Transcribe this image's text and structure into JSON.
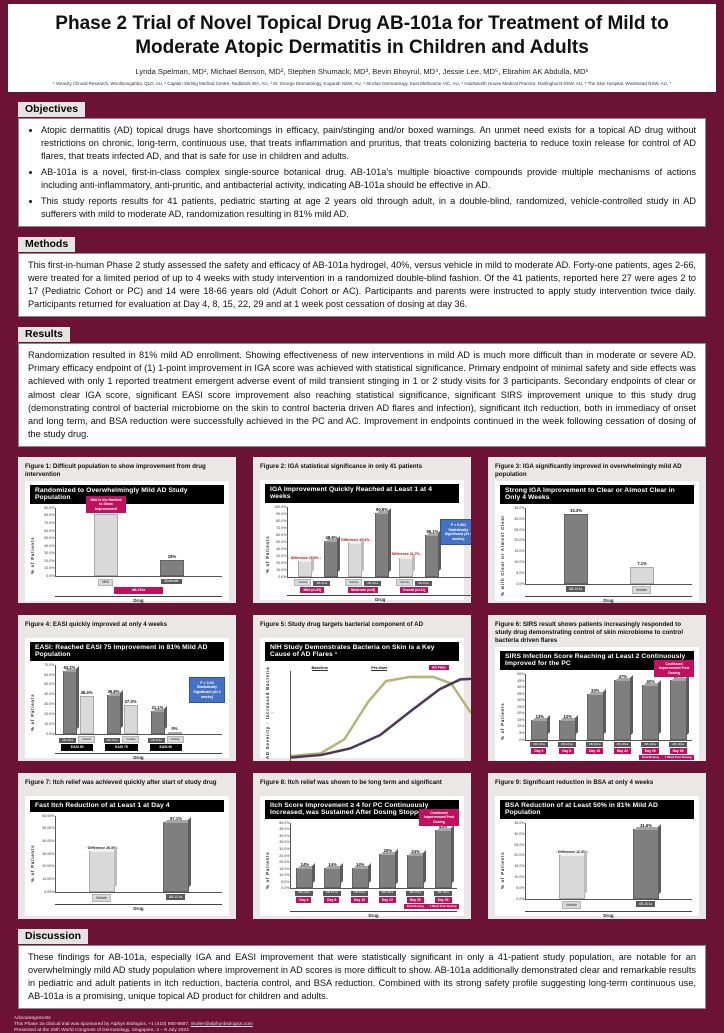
{
  "poster": {
    "title": "Phase 2 Trial of Novel Topical Drug AB-101a for Treatment of Mild to Moderate Atopic Dermatitis in Children and Adults",
    "authors": "Lynda Spelman, MD¹, Michael Benson, MD², Stephen Shumack, MD³, Bevin Bhoyrul, MD⁴, Jessie Lee, MD⁵, Ebrahim AK Abdulla, MD⁶",
    "affiliations": "¹ Veracity Clinical Research, Woolloongabba, QLD, AU, ² Captain Stirling Medical Centre, Nedlands WA, AU, ³ St. George Dermatology, Kogarah NSW, AU, ⁴ Sinclair Dermatology, East Melbourne VIC, AU, ⁵ Holdsworth House Medical Practice, Darlinghurst NSW, AU, ⁶ The Skin Hospital, Westmead NSW, AU, ⁷"
  },
  "sections": {
    "objectives": {
      "label": "Objectives",
      "bullets": [
        "Atopic dermatitis (AD) topical drugs have shortcomings in efficacy, pain/stinging and/or boxed warnings.  An unmet need exists for a topical AD drug without restrictions on chronic, long-term, continuous use, that treats inflammation and pruritus, that treats colonizing bacteria to reduce toxin release for control of AD flares, that treats infected AD, and that is safe for use in children and adults.",
        "AB-101a is a novel, first-in-class complex single-source botanical drug.  AB-101a's multiple bioactive compounds provide multiple mechanisms of actions including anti-inflammatory, anti-pruritic, and antibacterial activity, indicating AB-101a should be effective in AD.",
        "This study reports results for 41 patients, pediatric starting at age 2 years old through adult, in a double-blind, randomized, vehicle-controlled study in AD sufferers with mild to moderate AD, randomization resulting in 81% mild AD."
      ]
    },
    "methods": {
      "label": "Methods",
      "text": "This first-in-human Phase 2 study assessed the safety and efficacy of AB-101a hydrogel, 40%, versus vehicle in mild to moderate AD.  Forty-one patients, ages 2-66, were treated for a limited period of up to 4 weeks with study intervention in a randomized double-blind fashion.  Of the 41 patients, reported here 27 were ages 2 to 17 (Pediatric Cohort or PC) and 14 were 18-66 years old (Adult Cohort or AC).  Participants and parents were instructed to apply study intervention twice daily.  Participants returned for evaluation at Day 4, 8, 15, 22, 29 and at 1 week post cessation of dosing at day 36."
    },
    "results": {
      "label": "Results",
      "text": "Randomization resulted in 81% mild AD enrollment.  Showing effectiveness of new interventions in mild AD is much more difficult than in moderate or severe AD.  Primary efficacy endpoint of (1) 1-point improvement in IGA score was achieved with statistical significance.  Primary endpoint of minimal safety and side effects was achieved with only 1 reported treatment emergent adverse event of mild transient stinging in 1 or 2 study visits for 3 participants.  Secondary endpoints of clear or almost clear IGA score, significant EASI score improvement also reaching statistical significance, significant SIRS improvement unique to this study drug (demonstrating control of bacterial microbiome on the skin to control bacteria driven AD flares and infection), significant itch reduction, both in immediacy of onset and long term, and BSA reduction were successfully achieved in the PC and AC.  Improvement in endpoints continued in the week following cessation of dosing of the study drug."
    },
    "discussion": {
      "label": "Discussion",
      "text": "These findings for AB-101a, especially IGA and EASI improvement that were statistically significant in only a 41-patient study population, are notable for an overwhelmingly mild AD study population where improvement in AD scores is more difficult to show.  AB-101a additionally demonstrated clear and remarkable results in pediatric and adult patients in itch reduction, bacteria control, and BSA reduction.  Combined with its strong safety profile suggesting long-term continuous use, AB-101a is a promising, unique topical AD product for children and adults."
    }
  },
  "footer": {
    "ack_label": "Acknowledgements:",
    "sponsor_prefix": "This Phase 2a clinical trial was sponsored by Alphyn Biologics, +1 (410) 690-8687, ",
    "sponsor_link": "nkoller@alphynbiologics.com",
    "presented": "Presented at the 25th World Congress of Dermatology, Singapore, 3 – 8 July 2023"
  },
  "colors": {
    "background": "#6B1235",
    "accent_pink": "#C2105E",
    "bar_light": "#D9D9D9",
    "bar_dark": "#7F7F7F",
    "stat_blue": "#4472C4",
    "title_bar": "#000000",
    "diff_red": "#C00000",
    "staph_curve": "#B5B578",
    "severity_curve": "#4B3A55"
  },
  "chart_data": [
    {
      "type": "bar",
      "kind": "simple",
      "figure_label": "Figure 1:",
      "caption": "Difficult population to show improvement from drug intervention",
      "title": "Randomized to Overwhelmingly Mild AD Study Population",
      "ylabel": "% of Patients",
      "xlabel": "Drug",
      "ylim": [
        0,
        90
      ],
      "ystep": 10,
      "ydec": 1,
      "bars": [
        {
          "label": "Mild",
          "value": 81,
          "value_label": "81%",
          "color": "light"
        },
        {
          "label": "Moderate",
          "value": 19,
          "value_label": "19%",
          "color": "dark"
        }
      ],
      "callout": "Mild is the Hardest to Show Improvement",
      "legend_tag": "AB-101a"
    },
    {
      "type": "bar",
      "kind": "grouped3d",
      "figure_label": "Figure 2:",
      "caption": "IGA statistical significance in only 41 patients",
      "title": "IGA Improvement Quickly Reached at Least 1 at 4 weeks",
      "ylabel": "% of Patients",
      "xlabel": "Drug",
      "ylim": [
        0,
        100
      ],
      "ystep": 10,
      "ydec": 1,
      "series": [
        {
          "name": "Vehicle"
        },
        {
          "name": "AB-101a"
        }
      ],
      "groups": [
        {
          "label": "Mild (n=33)",
          "vehicle": 20.0,
          "drug": 48.6,
          "drug_label": "48.6%",
          "diff": "Difference 28.6%"
        },
        {
          "label": "Moderate (n=8)",
          "vehicle": 45.5,
          "drug": 90.9,
          "drug_label": "90.9%",
          "diff": "Difference 45.4%"
        },
        {
          "label": "Overall (n=41)",
          "vehicle": 24.4,
          "drug": 56.1,
          "drug_label": "56.1%",
          "diff": "Difference 31.7%"
        }
      ],
      "pvalue_box": "P = 0.002 Statistically Significant (At 4 weeks)"
    },
    {
      "type": "bar",
      "kind": "simple",
      "figure_label": "Figure 3:",
      "caption": "IGA significantly improved in overwhelmingly mild AD population",
      "title": "Strong IGA Improvement to Clear or Almost Clear in Only 4 Weeks",
      "ylabel": "% with Clear or Almost Clear",
      "xlabel": "Drug",
      "ylim": [
        0,
        35
      ],
      "ystep": 5,
      "ydec": 1,
      "bars": [
        {
          "label": "AB-101a",
          "value": 33.3,
          "value_label": "33.3%",
          "color": "dark"
        },
        {
          "label": "Vehicle",
          "value": 7.1,
          "value_label": "7.1%",
          "color": "light"
        }
      ]
    },
    {
      "type": "bar",
      "kind": "groupedflat",
      "figure_label": "Figure 4:",
      "caption": "EASI quickly improved at only 4 weeks",
      "title": "EASI:  Reached EASI 75 Improvement in 81% Mild AD Population",
      "ylabel": "% of Patients",
      "xlabel": "Drug",
      "ylim": [
        0,
        70
      ],
      "ystep": 10,
      "ydec": 1,
      "series": [
        {
          "name": "AB-101a"
        },
        {
          "name": "Vehicle"
        }
      ],
      "groups": [
        {
          "label": "EASI 50",
          "drug": 63.2,
          "vehicle": 36.4,
          "drug_label": "63.2%",
          "vehicle_label": "36.4%"
        },
        {
          "label": "EASI 75",
          "drug": 36.8,
          "vehicle": 27.3,
          "drug_label": "36.8%",
          "vehicle_label": "27.3%"
        },
        {
          "label": "EASI 90",
          "drug": 21.1,
          "vehicle": 0,
          "drug_label": "21.1%",
          "vehicle_label": "0%"
        }
      ],
      "pvalue_box": "P = 0.03 Statistically Significant (At 4 weeks)"
    },
    {
      "type": "line",
      "kind": "curves",
      "figure_label": "Figure 5:",
      "caption": "Study drug targets bacterial component of AD",
      "title": "NIH Study Demonstrates Bacteria on Skin is a Key Cause of AD Flares ¹",
      "ylabel": "AD Severity ↑  Increased Bacteria ↑",
      "xlabel": "Timeline of AD Resolution",
      "phases": [
        "Baseline",
        "Pre-flare",
        "AD Flare",
        "Resolving Flare",
        "Post-flare"
      ],
      "highlight_phase": "AD Flare",
      "legend": [
        {
          "label": "Proportion of Staphylococcus",
          "color": "#B5B578"
        },
        {
          "label": "AD Disease Severity",
          "color": "#4B3A55"
        }
      ],
      "staph_points": [
        [
          0,
          5
        ],
        [
          10,
          8
        ],
        [
          18,
          25
        ],
        [
          26,
          70
        ],
        [
          32,
          95
        ],
        [
          40,
          100
        ],
        [
          48,
          100
        ],
        [
          54,
          92
        ],
        [
          60,
          60
        ],
        [
          68,
          25
        ],
        [
          76,
          8
        ],
        [
          88,
          5
        ],
        [
          100,
          4
        ]
      ],
      "severity_points": [
        [
          0,
          3
        ],
        [
          10,
          6
        ],
        [
          20,
          14
        ],
        [
          30,
          30
        ],
        [
          40,
          58
        ],
        [
          50,
          85
        ],
        [
          57,
          97
        ],
        [
          63,
          98
        ],
        [
          70,
          85
        ],
        [
          78,
          60
        ],
        [
          86,
          32
        ],
        [
          94,
          12
        ],
        [
          100,
          6
        ]
      ],
      "footnote": "¹ Kong HH, et al. Temporal shifts in the skin microbiome associated with disease flares and treatment in children with atopic dermatitis. Genome Res. 2012; 22: 850-859. ",
      "footnote_link": "https://genome.cshlp.org/content/22/5/850"
    },
    {
      "type": "bar",
      "kind": "days3d",
      "figure_label": "Figure 6:",
      "caption": "SIRS result shows patients increasingly responded to study drug demonstrating control of skin microbiome to control bacteria driven flares",
      "title": "SIRS  Infection Score Reaching at Least 2 Continuously Improved for the PC",
      "ylabel": "% of Patients",
      "xlabel": "Drug",
      "ylim": [
        0,
        50
      ],
      "ystep": 5,
      "ydec": 0,
      "series_label": "AB-101a",
      "bars": [
        {
          "day": "Day 4",
          "value": 13,
          "value_label": "13%"
        },
        {
          "day": "Day 8",
          "value": 13,
          "value_label": "13%"
        },
        {
          "day": "Day 15",
          "value": 33,
          "value_label": "33%"
        },
        {
          "day": "Day 22",
          "value": 47,
          "value_label": "47%"
        },
        {
          "day": "Day 29",
          "value": 40,
          "value_label": "40%",
          "sub": "Final Dosing"
        },
        {
          "day": "Day 36",
          "value": 47,
          "value_label": "47%",
          "sub": "1 Week Post Dosing"
        }
      ],
      "callout": "Continued Improvement Post Dosing"
    },
    {
      "type": "bar",
      "kind": "pair3d",
      "figure_label": "Figure 7:",
      "caption": "Itch relief was achieved quickly after start of study drug",
      "title": "Fast Itch Reduction of at Least 1 at Day 4",
      "ylabel": "% of Patients",
      "xlabel": "Drug",
      "ylim": [
        0,
        60
      ],
      "ystep": 10,
      "ydec": 2,
      "bars": [
        {
          "label": "Vehicle",
          "value": 30.8,
          "color": "light",
          "diff": "Difference 26.3%"
        },
        {
          "label": "AB-101a",
          "value": 57.1,
          "value_label": "57.1%",
          "color": "dark"
        }
      ]
    },
    {
      "type": "bar",
      "kind": "days3d",
      "figure_label": "Figure 8:",
      "caption": "Itch relief was shown to be long term and significant",
      "title": "Itch Score Improvement ≥ 4 for PC Continuously Increased, was Sustained After Dosing Stopped",
      "ylabel": "% of Patients",
      "xlabel": "Drug",
      "ylim": [
        0,
        50
      ],
      "ystep": 5,
      "ydec": 1,
      "series_label": "AB-101a",
      "bars": [
        {
          "day": "Day 4",
          "value": 14,
          "value_label": "14%"
        },
        {
          "day": "Day 8",
          "value": 14,
          "value_label": "14%"
        },
        {
          "day": "Day 15",
          "value": 14,
          "value_label": "14%"
        },
        {
          "day": "Day 22",
          "value": 25,
          "value_label": "25%"
        },
        {
          "day": "Day 29",
          "value": 24,
          "value_label": "24%",
          "sub": "Final Dosing"
        },
        {
          "day": "Day 36",
          "value": 43,
          "value_label": "43%",
          "sub": "1 Week Post Dosing"
        }
      ],
      "callout": "Continued Improvement Post Dosing"
    },
    {
      "type": "bar",
      "kind": "pair3d",
      "figure_label": "Figure 9:",
      "caption": "Significant reduction in BSA at only 4 weeks",
      "title": "BSA Reduction of at Least 50% in 81% Mild AD Population",
      "ylabel": "% of Patients",
      "xlabel": "Drug",
      "ylim": [
        0,
        35
      ],
      "ystep": 5,
      "ydec": 1,
      "bars": [
        {
          "label": "Vehicle",
          "value": 19.2,
          "color": "light",
          "diff": "Difference 12.4%"
        },
        {
          "label": "AB-101a",
          "value": 31.6,
          "value_label": "31.6%",
          "color": "dark"
        }
      ]
    }
  ]
}
